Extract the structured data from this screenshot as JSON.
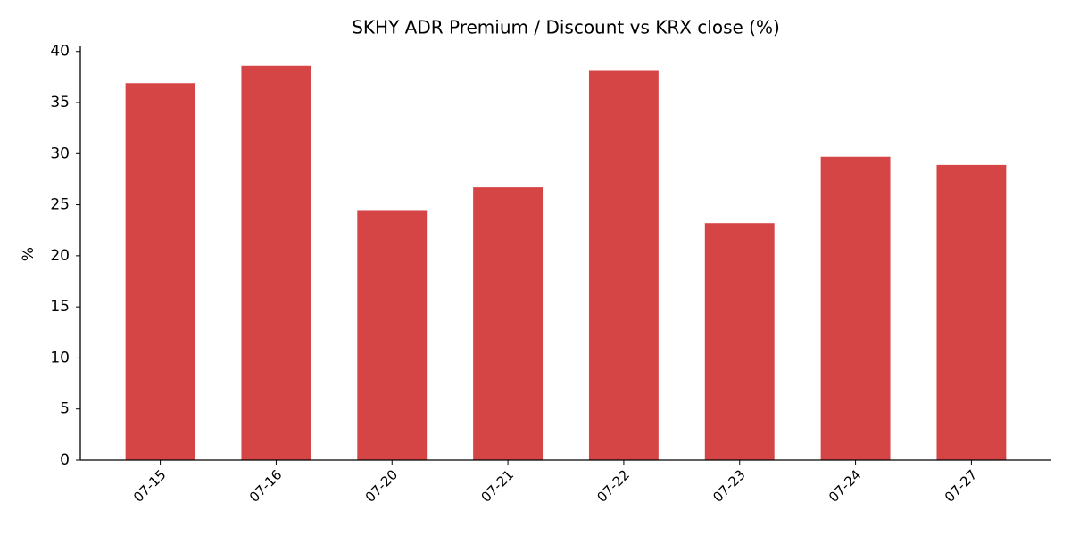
{
  "chart_data": {
    "type": "bar",
    "title": "SKHY ADR Premium / Discount vs KRX close (%)",
    "y_label": "%",
    "categories": [
      "07-15",
      "07-16",
      "07-20",
      "07-21",
      "07-22",
      "07-23",
      "07-24",
      "07-27"
    ],
    "values": [
      36.9,
      38.6,
      24.4,
      26.7,
      38.1,
      23.2,
      29.7,
      28.9
    ],
    "color": "#d64545",
    "ylim": [
      0,
      40.5
    ],
    "yticks": [
      0,
      5,
      10,
      15,
      20,
      25,
      30,
      35,
      40
    ],
    "grid": false
  }
}
